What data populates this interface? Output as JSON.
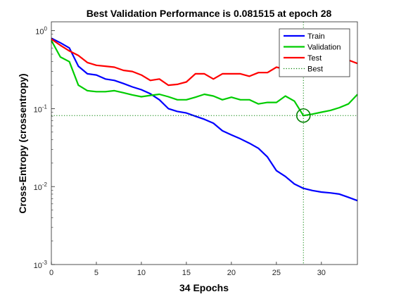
{
  "chart_data": {
    "type": "line",
    "title": "Best Validation Performance is 0.081515 at epoch 28",
    "xlabel": "34 Epochs",
    "ylabel": "Cross-Entropy  (crossentropy)",
    "xlim": [
      0,
      34
    ],
    "ylim": [
      0.001,
      1.3
    ],
    "yscale": "log",
    "x_ticks": [
      0,
      5,
      10,
      15,
      20,
      25,
      30
    ],
    "y_ticks": [
      {
        "value": 0.001,
        "base": "10",
        "exp": "-3"
      },
      {
        "value": 0.01,
        "base": "10",
        "exp": "-2"
      },
      {
        "value": 0.1,
        "base": "10",
        "exp": "-1"
      },
      {
        "value": 1,
        "base": "10",
        "exp": "0"
      }
    ],
    "legend_position": "top-right",
    "series": [
      {
        "name": "Train",
        "color": "#0000ff",
        "x": [
          0,
          1,
          2,
          3,
          4,
          5,
          6,
          7,
          8,
          9,
          10,
          11,
          12,
          13,
          14,
          15,
          16,
          17,
          18,
          19,
          20,
          21,
          22,
          23,
          24,
          25,
          26,
          27,
          28,
          29,
          30,
          31,
          32,
          33,
          34
        ],
        "values": [
          0.8,
          0.7,
          0.6,
          0.35,
          0.28,
          0.27,
          0.24,
          0.23,
          0.21,
          0.19,
          0.175,
          0.155,
          0.13,
          0.1,
          0.092,
          0.088,
          0.08,
          0.073,
          0.065,
          0.052,
          0.046,
          0.041,
          0.036,
          0.031,
          0.024,
          0.016,
          0.0135,
          0.0108,
          0.0095,
          0.0089,
          0.0085,
          0.0083,
          0.008,
          0.0073,
          0.0066
        ]
      },
      {
        "name": "Validation",
        "color": "#00cc00",
        "x": [
          0,
          1,
          2,
          3,
          4,
          5,
          6,
          7,
          8,
          9,
          10,
          11,
          12,
          13,
          14,
          15,
          16,
          17,
          18,
          19,
          20,
          21,
          22,
          23,
          24,
          25,
          26,
          27,
          28,
          29,
          30,
          31,
          32,
          33,
          34
        ],
        "values": [
          0.75,
          0.46,
          0.4,
          0.2,
          0.17,
          0.165,
          0.165,
          0.17,
          0.16,
          0.15,
          0.142,
          0.148,
          0.153,
          0.142,
          0.13,
          0.13,
          0.14,
          0.153,
          0.145,
          0.13,
          0.14,
          0.13,
          0.13,
          0.115,
          0.12,
          0.12,
          0.145,
          0.125,
          0.0815,
          0.085,
          0.09,
          0.095,
          0.103,
          0.115,
          0.152
        ]
      },
      {
        "name": "Test",
        "color": "#ff0000",
        "x": [
          0,
          1,
          2,
          3,
          4,
          5,
          6,
          7,
          8,
          9,
          10,
          11,
          12,
          13,
          14,
          15,
          16,
          17,
          18,
          19,
          20,
          21,
          22,
          23,
          24,
          25,
          26,
          27,
          28,
          29,
          30,
          31,
          32,
          33,
          34
        ],
        "values": [
          0.78,
          0.65,
          0.55,
          0.48,
          0.39,
          0.36,
          0.35,
          0.34,
          0.31,
          0.3,
          0.27,
          0.23,
          0.24,
          0.2,
          0.205,
          0.22,
          0.28,
          0.28,
          0.24,
          0.28,
          0.28,
          0.28,
          0.26,
          0.29,
          0.29,
          0.34,
          0.32,
          0.35,
          0.33,
          0.35,
          0.38,
          0.36,
          0.41,
          0.42,
          0.38
        ]
      }
    ],
    "best": {
      "name": "Best",
      "epoch": 28,
      "value": 0.081515,
      "color": "#008000"
    }
  }
}
